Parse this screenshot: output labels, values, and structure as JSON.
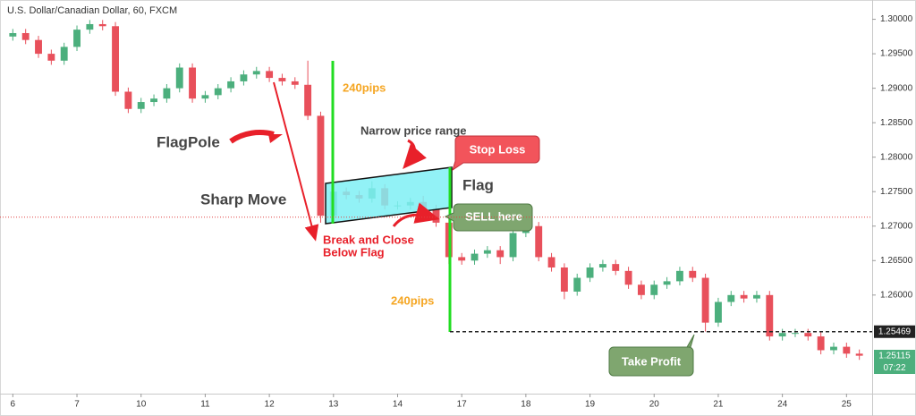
{
  "chart_data": {
    "type": "candlestick",
    "title": "U.S. Dollar/Canadian Dollar, 60, FXCM",
    "up_color": "#4caf7d",
    "down_color": "#e8505b",
    "open": [
      1.2975,
      1.298,
      1.297,
      1.295,
      1.294,
      1.296,
      1.2985,
      1.2993,
      1.299,
      1.2895,
      1.287,
      1.288,
      1.2885,
      1.29,
      1.293,
      1.2885,
      1.289,
      1.29,
      1.291,
      1.292,
      1.2925,
      1.2915,
      1.291,
      1.2905,
      1.286,
      1.2715,
      1.275,
      1.2745,
      1.274,
      1.2755,
      1.273,
      1.273,
      1.2735,
      1.2725,
      1.2705,
      1.2655,
      1.265,
      1.266,
      1.2665,
      1.2655,
      1.269,
      1.27,
      1.2655,
      1.264,
      1.2605,
      1.2625,
      1.264,
      1.2645,
      1.2635,
      1.2615,
      1.26,
      1.2615,
      1.262,
      1.2635,
      1.2625,
      1.256,
      1.259,
      1.26,
      1.2595,
      1.26,
      1.254,
      1.2545,
      1.2545,
      1.254,
      1.252,
      1.2525,
      1.2515
    ],
    "high": [
      1.2986,
      1.2986,
      1.2976,
      1.2956,
      1.2966,
      1.2991,
      1.2999,
      1.2999,
      1.2996,
      1.2901,
      1.2886,
      1.2891,
      1.2906,
      1.2936,
      1.2936,
      1.2896,
      1.2906,
      1.2916,
      1.2926,
      1.2931,
      1.2931,
      1.2921,
      1.2916,
      1.294,
      1.2866,
      1.2762,
      1.2756,
      1.2751,
      1.2765,
      1.2761,
      1.2736,
      1.2741,
      1.2744,
      1.2731,
      1.2711,
      1.2661,
      1.2666,
      1.2671,
      1.2671,
      1.2696,
      1.2706,
      1.2706,
      1.2661,
      1.2646,
      1.2631,
      1.2646,
      1.2651,
      1.2651,
      1.2641,
      1.2621,
      1.2621,
      1.2626,
      1.2641,
      1.2641,
      1.2631,
      1.2596,
      1.2606,
      1.2606,
      1.2606,
      1.2606,
      1.2551,
      1.2551,
      1.2551,
      1.2546,
      1.2531,
      1.2531,
      1.2521
    ],
    "low": [
      1.2969,
      1.2964,
      1.2944,
      1.2934,
      1.2934,
      1.2954,
      1.2979,
      1.2984,
      1.2889,
      1.2864,
      1.2864,
      1.2874,
      1.2879,
      1.2894,
      1.2879,
      1.2879,
      1.2884,
      1.2894,
      1.2904,
      1.2914,
      1.2909,
      1.2904,
      1.2899,
      1.2854,
      1.2705,
      1.2709,
      1.2739,
      1.2734,
      1.2734,
      1.2724,
      1.2724,
      1.2724,
      1.2719,
      1.2699,
      1.2645,
      1.2644,
      1.2644,
      1.2654,
      1.2645,
      1.2649,
      1.2684,
      1.2649,
      1.2634,
      1.2594,
      1.2599,
      1.2619,
      1.2634,
      1.2629,
      1.2609,
      1.2594,
      1.2594,
      1.2609,
      1.2614,
      1.2619,
      1.2547,
      1.2554,
      1.2584,
      1.2589,
      1.2589,
      1.2534,
      1.2534,
      1.2539,
      1.2534,
      1.2514,
      1.2514,
      1.2509,
      1.2506
    ],
    "close": [
      1.298,
      1.297,
      1.295,
      1.294,
      1.296,
      1.2985,
      1.2993,
      1.299,
      1.2895,
      1.287,
      1.288,
      1.2885,
      1.29,
      1.293,
      1.2885,
      1.289,
      1.29,
      1.291,
      1.292,
      1.2925,
      1.2915,
      1.291,
      1.2905,
      1.286,
      1.2715,
      1.275,
      1.2745,
      1.274,
      1.2755,
      1.273,
      1.273,
      1.2735,
      1.2725,
      1.2705,
      1.2655,
      1.265,
      1.266,
      1.2665,
      1.2655,
      1.269,
      1.27,
      1.2655,
      1.264,
      1.2605,
      1.2625,
      1.264,
      1.2645,
      1.2635,
      1.2615,
      1.26,
      1.2615,
      1.262,
      1.2635,
      1.2625,
      1.256,
      1.259,
      1.26,
      1.2595,
      1.26,
      1.254,
      1.2545,
      1.2545,
      1.254,
      1.252,
      1.2525,
      1.2515,
      1.2512
    ],
    "xlim": [
      -1,
      67
    ],
    "xticks": [
      {
        "value": 0,
        "label": "6"
      },
      {
        "value": 5,
        "label": "7"
      },
      {
        "value": 10,
        "label": "10"
      },
      {
        "value": 15,
        "label": "11"
      },
      {
        "value": 20,
        "label": "12"
      },
      {
        "value": 25,
        "label": "13"
      },
      {
        "value": 30,
        "label": "14"
      },
      {
        "value": 35,
        "label": "17"
      },
      {
        "value": 40,
        "label": "18"
      },
      {
        "value": 45,
        "label": "19"
      },
      {
        "value": 50,
        "label": "20"
      },
      {
        "value": 55,
        "label": "21"
      },
      {
        "value": 60,
        "label": "24"
      },
      {
        "value": 65,
        "label": "25"
      }
    ],
    "ylim": [
      1.2457,
      1.3028
    ],
    "yticks": [
      {
        "value": 1.3,
        "label": "1.30000"
      },
      {
        "value": 1.295,
        "label": "1.29500"
      },
      {
        "value": 1.29,
        "label": "1.29000"
      },
      {
        "value": 1.285,
        "label": "1.28500"
      },
      {
        "value": 1.28,
        "label": "1.28000"
      },
      {
        "value": 1.275,
        "label": "1.27500"
      },
      {
        "value": 1.27,
        "label": "1.27000"
      },
      {
        "value": 1.265,
        "label": "1.26500"
      },
      {
        "value": 1.26,
        "label": "1.26000"
      }
    ],
    "price_lines": [
      {
        "value": 1.2713,
        "color": "#e04040"
      },
      {
        "value": 1.25469,
        "label": "1.25469",
        "color": "#222222"
      },
      {
        "value": 1.25115,
        "label": "1.25115",
        "countdown": "07:22",
        "color": "#4caf7d"
      }
    ]
  },
  "annotations": {
    "flagpole": "FlagPole",
    "sharp_move": "Sharp Move",
    "narrow_range": "Narrow price range",
    "stop_loss": "Stop Loss",
    "flag": "Flag",
    "sell_here": "SELL here",
    "break_close": [
      "Break and Close",
      "Below Flag"
    ],
    "pips_top": "240pips",
    "pips_bottom": "240pips",
    "take_profit": "Take Profit"
  }
}
